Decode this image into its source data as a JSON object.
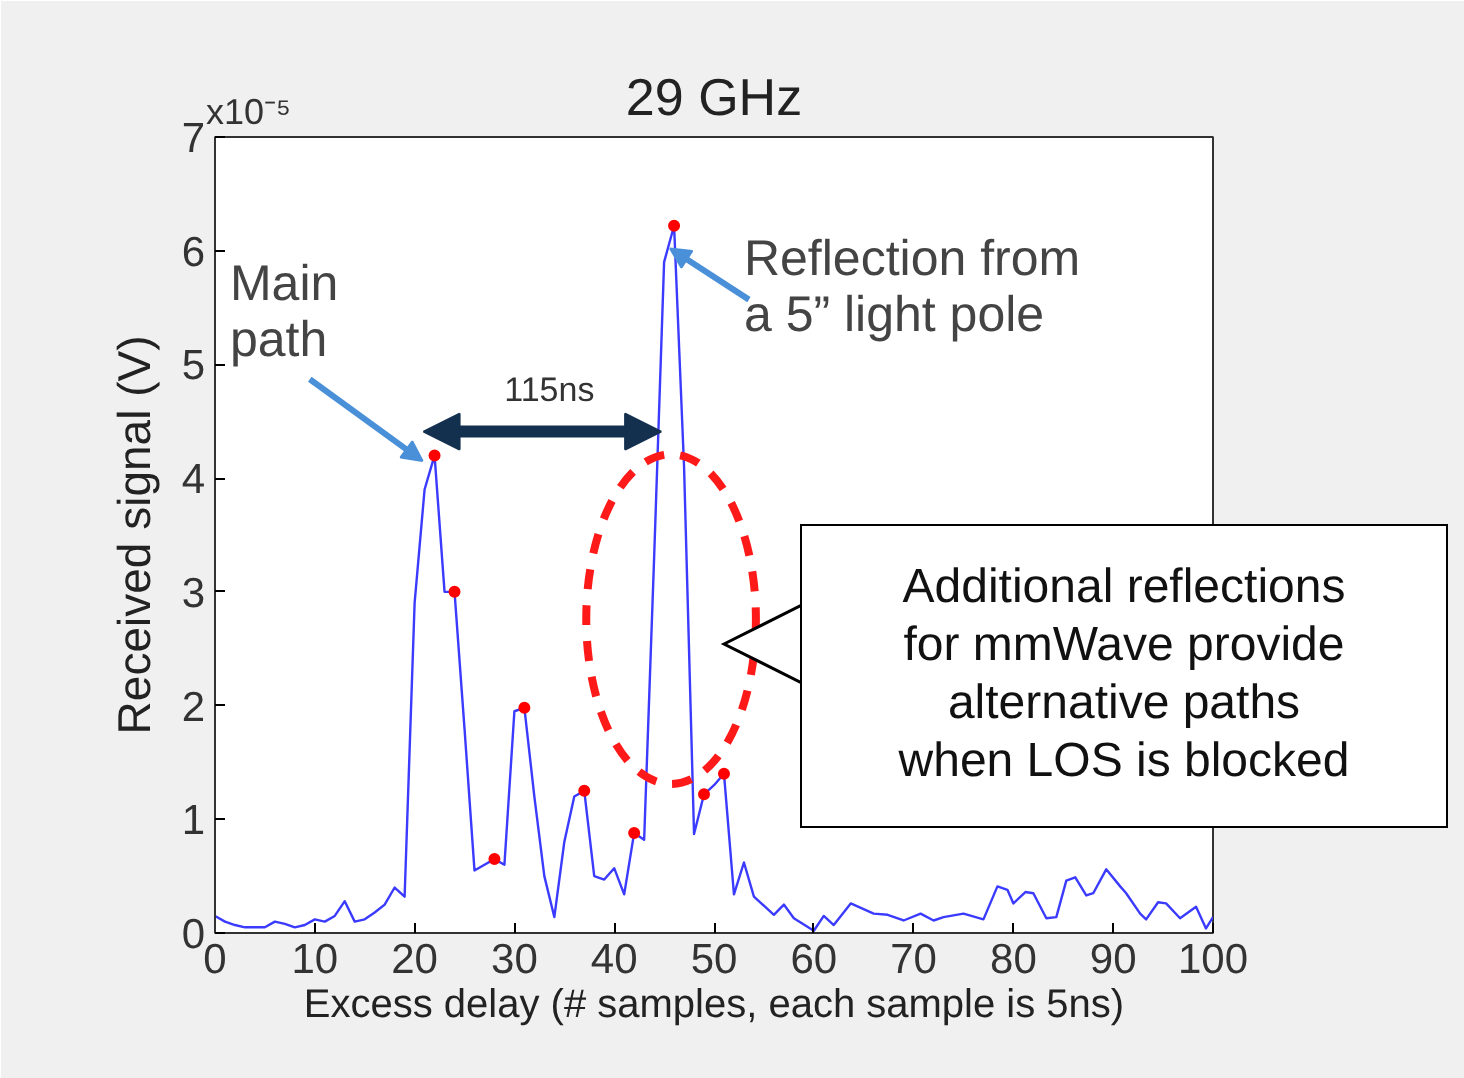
{
  "chart_data": {
    "type": "line",
    "title": "29 GHz",
    "xlabel": "Excess delay (# samples, each sample is 5ns)",
    "ylabel": "Received signal (V)",
    "xlim": [
      0,
      100
    ],
    "ylim": [
      0,
      7
    ],
    "xticks": [
      0,
      10,
      20,
      30,
      40,
      50,
      60,
      70,
      80,
      90,
      100
    ],
    "yticks": [
      0,
      1,
      2,
      3,
      4,
      5,
      6,
      7
    ],
    "grid": false,
    "line_style": "solid",
    "annotations": [
      {
        "text": "Main\npath",
        "x": 22,
        "y": 4.2
      },
      {
        "text": "Reflection from\na 5” light pole",
        "x": 46,
        "y": 6.22
      },
      "115ns",
      "x10⁻⁵",
      "Additional reflections\nfor mmWave provide\nalternative paths\nwhen LOS is blocked"
    ],
    "series": [
      {
        "color": "#3b3bff",
        "marker": "none",
        "x": [
          0,
          1,
          2,
          3,
          4,
          5,
          6,
          7,
          8,
          9,
          10,
          11,
          12,
          13,
          14,
          15,
          16,
          17,
          18,
          19,
          20,
          21,
          22,
          23,
          24,
          25,
          26,
          27,
          28,
          29,
          30,
          31,
          32,
          33,
          34,
          35,
          36,
          37,
          38,
          39,
          40,
          41,
          42,
          43,
          44,
          45,
          46,
          47,
          48,
          49,
          50,
          51,
          52,
          53,
          54,
          56,
          57,
          58,
          60,
          61,
          62,
          63.7,
          66,
          67.4,
          69,
          70.7,
          72,
          73,
          75,
          77,
          78.4,
          79.4,
          80,
          81.2,
          82,
          83.3,
          84.3,
          85.3,
          86.2,
          87.3,
          88,
          89.3,
          90.7,
          91.3,
          92.7,
          93.3,
          94.5,
          95.3,
          96.7,
          98.3,
          99.3,
          100
        ],
        "values": [
          0.15,
          0.1,
          0.07,
          0.05,
          0.05,
          0.05,
          0.1,
          0.08,
          0.05,
          0.07,
          0.12,
          0.1,
          0.15,
          0.28,
          0.1,
          0.12,
          0.18,
          0.25,
          0.4,
          0.32,
          2.9,
          3.9,
          4.2,
          3.0,
          3.0,
          1.8,
          0.55,
          0.6,
          0.65,
          0.6,
          1.95,
          1.98,
          1.2,
          0.5,
          0.14,
          0.8,
          1.2,
          1.25,
          0.5,
          0.47,
          0.57,
          0.34,
          0.88,
          0.82,
          3.3,
          5.9,
          6.22,
          4.1,
          0.87,
          1.22,
          1.3,
          1.4,
          0.34,
          0.62,
          0.32,
          0.16,
          0.25,
          0.13,
          0.02,
          0.15,
          0.07,
          0.26,
          0.17,
          0.16,
          0.11,
          0.17,
          0.11,
          0.14,
          0.17,
          0.12,
          0.41,
          0.38,
          0.26,
          0.36,
          0.35,
          0.13,
          0.14,
          0.46,
          0.49,
          0.33,
          0.35,
          0.56,
          0.41,
          0.35,
          0.17,
          0.12,
          0.27,
          0.26,
          0.13,
          0.23,
          0.04,
          0.14
        ]
      },
      {
        "type": "scatter",
        "color": "#ff0000",
        "marker": "circle",
        "x": [
          22,
          24,
          28,
          31,
          37,
          42,
          46,
          49,
          51
        ],
        "values": [
          4.2,
          3.0,
          0.65,
          1.98,
          1.25,
          0.88,
          6.22,
          1.22,
          1.4
        ]
      }
    ]
  }
}
